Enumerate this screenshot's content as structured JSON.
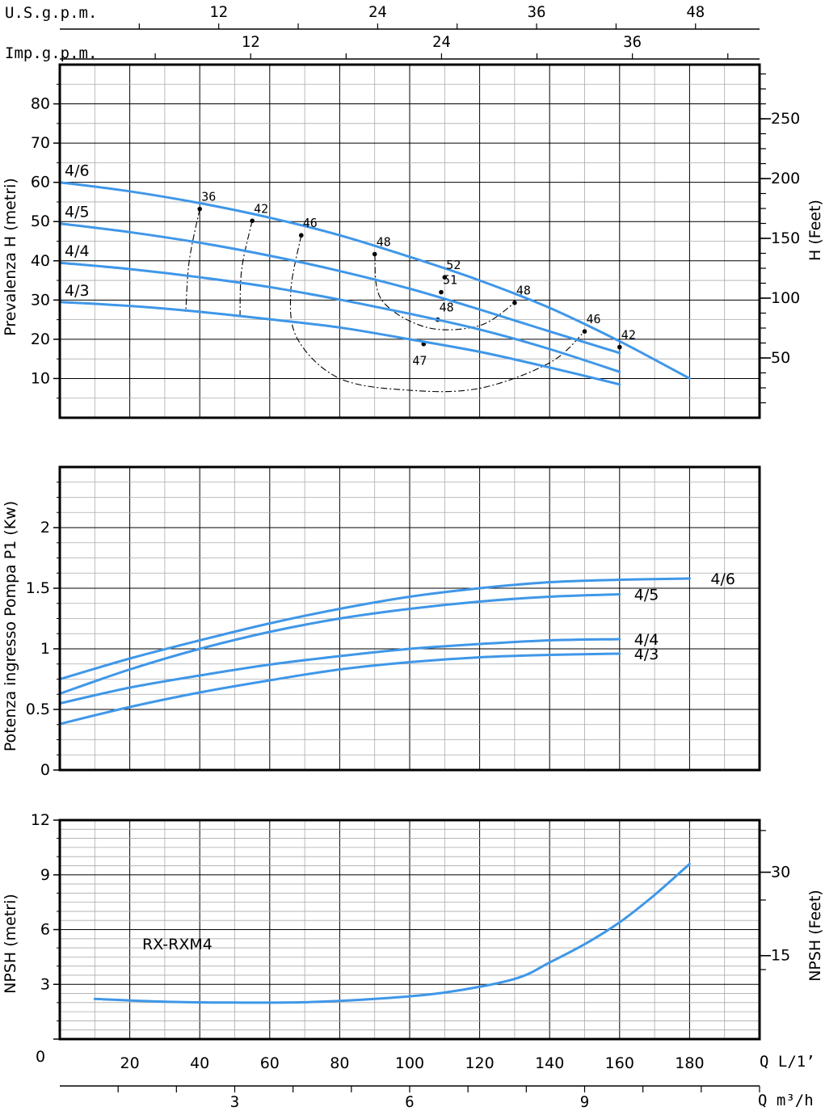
{
  "colors": {
    "curve": "#3f97e8",
    "grid_fine": "#aaaaaa",
    "grid_major": "#000000",
    "ink": "#000000"
  },
  "top_scales": [
    {
      "label": "U.S.g.p.m.",
      "ticks": [
        12,
        24,
        36,
        48
      ],
      "per_l_min": 0.26417
    },
    {
      "label": "Imp.g.p.m.",
      "ticks": [
        12,
        24,
        36
      ],
      "per_l_min": 0.21997
    }
  ],
  "bottom_scales": {
    "q_lmin": {
      "label": "Q L/1’",
      "ticks": [
        0,
        20,
        40,
        60,
        80,
        100,
        120,
        140,
        160,
        180
      ]
    },
    "q_m3h": {
      "label": "Q m³/h",
      "ticks": [
        3,
        6,
        9
      ],
      "per_l_min": 0.06
    }
  },
  "chart_data": [
    {
      "type": "line",
      "title": "",
      "xlabel": "",
      "ylabel": "Prevalenza H (metri)",
      "ylabel_right": "H (Feet)",
      "xlim": [
        0,
        200
      ],
      "ylim": [
        0,
        90
      ],
      "yticks": [
        10,
        20,
        30,
        40,
        50,
        60,
        70,
        80
      ],
      "yticks_right": [
        50,
        100,
        150,
        200,
        250
      ],
      "series": [
        {
          "name": "4/6",
          "x": [
            0,
            20,
            40,
            60,
            80,
            100,
            120,
            140,
            160,
            180
          ],
          "y": [
            60.0,
            57.7,
            54.7,
            51.0,
            46.5,
            41.0,
            35.0,
            28.0,
            19.5,
            10.0
          ]
        },
        {
          "name": "4/5",
          "x": [
            0,
            20,
            40,
            60,
            80,
            100,
            120,
            140,
            160
          ],
          "y": [
            49.5,
            47.3,
            44.6,
            41.3,
            37.4,
            32.9,
            27.6,
            22.0,
            16.5
          ]
        },
        {
          "name": "4/4",
          "x": [
            0,
            20,
            40,
            60,
            80,
            100,
            120,
            140,
            160
          ],
          "y": [
            39.5,
            37.9,
            35.8,
            33.3,
            30.1,
            26.5,
            22.5,
            17.5,
            11.7
          ]
        },
        {
          "name": "4/3",
          "x": [
            0,
            20,
            40,
            60,
            80,
            100,
            120,
            140,
            160
          ],
          "y": [
            29.5,
            28.5,
            27.0,
            25.1,
            23.0,
            20.0,
            16.8,
            12.8,
            8.5
          ]
        }
      ],
      "efficiency_points": [
        {
          "label": "36",
          "x": 40,
          "y": 53.2
        },
        {
          "label": "42",
          "x": 55,
          "y": 50.2
        },
        {
          "label": "46",
          "x": 69,
          "y": 46.5
        },
        {
          "label": "48",
          "x": 90,
          "y": 41.7
        },
        {
          "label": "52",
          "x": 110,
          "y": 35.8
        },
        {
          "label": "51",
          "x": 109,
          "y": 32.0
        },
        {
          "label": "48",
          "x": 108,
          "y": 25.0
        },
        {
          "label": "47",
          "x": 104,
          "y": 18.8
        },
        {
          "label": "48",
          "x": 130,
          "y": 29.3
        },
        {
          "label": "46",
          "x": 150,
          "y": 22.0
        },
        {
          "label": "42",
          "x": 160,
          "y": 18.0
        }
      ],
      "efficiency_lines": [
        {
          "x": [
            40,
            37,
            36
          ],
          "y": [
            53.2,
            40,
            27
          ]
        },
        {
          "x": [
            55,
            52,
            51.5
          ],
          "y": [
            50.2,
            38,
            26
          ]
        },
        {
          "x": [
            69,
            66,
            68,
            80,
            100,
            120,
            140,
            150
          ],
          "y": [
            46.5,
            32,
            20,
            10,
            7,
            7.5,
            14,
            22
          ]
        },
        {
          "x": [
            90,
            92,
            105,
            120,
            130
          ],
          "y": [
            41.7,
            30,
            23,
            23.5,
            29.3
          ]
        }
      ]
    },
    {
      "type": "line",
      "title": "",
      "xlabel": "",
      "ylabel": "Potenza ingresso Pompa P1 (Kw)",
      "xlim": [
        0,
        200
      ],
      "ylim": [
        0,
        2.5
      ],
      "yticks": [
        0,
        0.5,
        1,
        1.5,
        2
      ],
      "ytick_labels": [
        "0",
        "0.5",
        "1",
        "1.5",
        "2"
      ],
      "series": [
        {
          "name": "4/6",
          "x": [
            0,
            20,
            40,
            60,
            80,
            100,
            120,
            140,
            160,
            180
          ],
          "y": [
            0.75,
            0.92,
            1.07,
            1.21,
            1.33,
            1.43,
            1.5,
            1.55,
            1.57,
            1.58
          ]
        },
        {
          "name": "4/5",
          "x": [
            0,
            20,
            40,
            60,
            80,
            100,
            120,
            140,
            160
          ],
          "y": [
            0.63,
            0.83,
            1.0,
            1.14,
            1.25,
            1.33,
            1.39,
            1.43,
            1.45
          ]
        },
        {
          "name": "4/4",
          "x": [
            0,
            20,
            40,
            60,
            80,
            100,
            120,
            140,
            160
          ],
          "y": [
            0.55,
            0.68,
            0.78,
            0.87,
            0.94,
            1.0,
            1.04,
            1.07,
            1.08
          ]
        },
        {
          "name": "4/3",
          "x": [
            0,
            20,
            40,
            60,
            80,
            100,
            120,
            140,
            160
          ],
          "y": [
            0.38,
            0.52,
            0.64,
            0.74,
            0.83,
            0.89,
            0.93,
            0.95,
            0.96
          ]
        }
      ]
    },
    {
      "type": "line",
      "title": "",
      "xlabel": "",
      "ylabel": "NPSH (metri)",
      "ylabel_right": "NPSH (Feet)",
      "annotation": "RX-RXM4",
      "xlim": [
        0,
        200
      ],
      "ylim": [
        0,
        12
      ],
      "yticks": [
        0,
        3,
        6,
        9,
        12
      ],
      "yticks_right": [
        15,
        30
      ],
      "series": [
        {
          "name": "RX-RXM4",
          "x": [
            10,
            30,
            50,
            70,
            90,
            110,
            130,
            140,
            150,
            160,
            170,
            180
          ],
          "y": [
            2.2,
            2.05,
            2.0,
            2.02,
            2.2,
            2.55,
            3.3,
            4.2,
            5.2,
            6.4,
            7.9,
            9.6
          ]
        }
      ]
    }
  ]
}
